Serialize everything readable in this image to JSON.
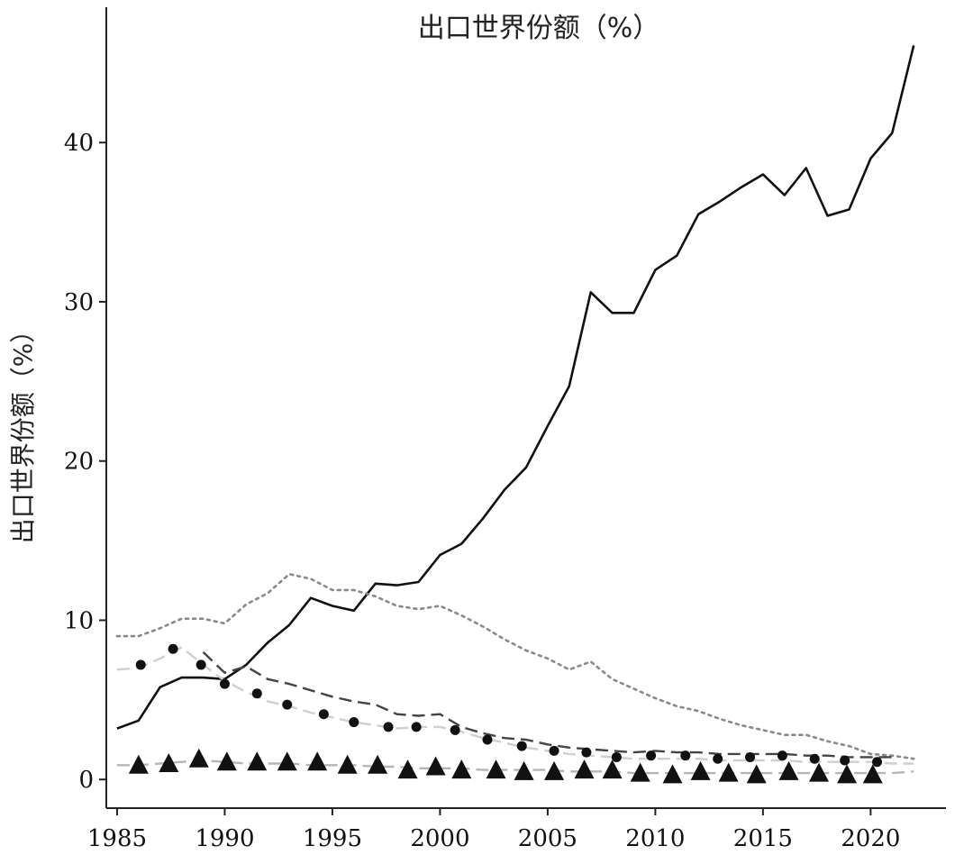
{
  "chart_data": {
    "type": "line",
    "title": "出口世界份额（%）",
    "xlabel": "",
    "ylabel": "出口世界份额（%）",
    "xlim": [
      1984.5,
      2023.5
    ],
    "ylim": [
      -1.8,
      48.5
    ],
    "xticks": [
      1985,
      1990,
      1995,
      2000,
      2005,
      2010,
      2015,
      2020
    ],
    "yticks": [
      0,
      10,
      20,
      30,
      40
    ],
    "grid": false,
    "legend": "none",
    "series": [
      {
        "style": "solid",
        "color": "#111111",
        "x": [
          1985,
          1986,
          1987,
          1988,
          1989,
          1990,
          1991,
          1992,
          1993,
          1994,
          1995,
          1996,
          1997,
          1998,
          1999,
          2000,
          2001,
          2002,
          2003,
          2004,
          2005,
          2006,
          2007,
          2008,
          2009,
          2010,
          2011,
          2012,
          2013,
          2014,
          2015,
          2016,
          2017,
          2018,
          2019,
          2020,
          2021,
          2022
        ],
        "values": [
          3.2,
          3.7,
          5.8,
          6.4,
          6.4,
          6.3,
          7.2,
          8.6,
          9.7,
          11.4,
          10.9,
          10.6,
          12.3,
          12.2,
          12.4,
          14.1,
          14.8,
          16.4,
          18.2,
          19.6,
          22.2,
          24.7,
          30.6,
          29.3,
          29.3,
          32.0,
          32.9,
          35.5,
          36.3,
          37.2,
          38.0,
          36.7,
          38.4,
          35.4,
          35.8,
          39.0,
          40.6,
          46.1
        ]
      },
      {
        "style": "dotted",
        "color": "#8a8a8a",
        "x": [
          1985,
          1986,
          1987,
          1988,
          1989,
          1990,
          1991,
          1992,
          1993,
          1994,
          1995,
          1996,
          1997,
          1998,
          1999,
          2000,
          2001,
          2002,
          2003,
          2004,
          2005,
          2006,
          2007,
          2008,
          2009,
          2010,
          2011,
          2012,
          2013,
          2014,
          2015,
          2016,
          2017,
          2018,
          2019,
          2020,
          2021,
          2022
        ],
        "values": [
          9.0,
          9.0,
          9.5,
          10.1,
          10.1,
          9.8,
          11.0,
          11.7,
          12.9,
          12.6,
          11.9,
          11.9,
          11.5,
          10.9,
          10.7,
          10.9,
          10.3,
          9.6,
          8.8,
          8.1,
          7.6,
          6.9,
          7.4,
          6.3,
          5.7,
          5.1,
          4.6,
          4.3,
          3.8,
          3.4,
          3.1,
          2.8,
          2.8,
          2.4,
          2.1,
          1.6,
          1.5,
          1.3
        ]
      },
      {
        "style": "dashed",
        "color": "#444444",
        "x": [
          1989,
          1990,
          1991,
          1992,
          1993,
          1994,
          1995,
          1996,
          1997,
          1998,
          1999,
          2000,
          2001,
          2002,
          2003,
          2004,
          2005,
          2006,
          2007,
          2008,
          2009,
          2010,
          2011,
          2012,
          2013,
          2014,
          2015,
          2016,
          2017,
          2018,
          2019,
          2020,
          2021
        ],
        "values": [
          8.0,
          6.7,
          7.1,
          6.3,
          6.0,
          5.6,
          5.2,
          4.9,
          4.7,
          4.1,
          4.0,
          4.1,
          3.3,
          2.9,
          2.6,
          2.5,
          2.2,
          2.0,
          1.9,
          1.8,
          1.7,
          1.8,
          1.7,
          1.7,
          1.6,
          1.6,
          1.6,
          1.6,
          1.5,
          1.5,
          1.4,
          1.4,
          1.4
        ]
      },
      {
        "style": "dashed",
        "color": "#cfcfcf",
        "x": [
          1985,
          1986,
          1987,
          1988,
          1989,
          1990,
          1991,
          1992,
          1993,
          1994,
          1995,
          1996,
          1997,
          1998,
          1999,
          2000,
          2001,
          2002,
          2003,
          2004,
          2005,
          2006,
          2007,
          2008,
          2009,
          2010,
          2011,
          2012,
          2013,
          2014,
          2015,
          2016,
          2017,
          2018,
          2019,
          2020,
          2021,
          2022
        ],
        "values": [
          6.9,
          7.0,
          7.6,
          8.3,
          7.2,
          6.2,
          5.5,
          4.9,
          4.6,
          4.2,
          3.9,
          3.6,
          3.4,
          3.2,
          3.3,
          3.3,
          3.0,
          2.6,
          2.3,
          2.0,
          1.8,
          1.6,
          1.5,
          1.4,
          1.3,
          1.3,
          1.3,
          1.3,
          1.2,
          1.2,
          1.2,
          1.2,
          1.1,
          1.1,
          1.1,
          1.1,
          1.0,
          1.0
        ]
      },
      {
        "style": "markers",
        "marker": "circle",
        "color": "#111111",
        "x": [
          1986.1,
          1987.6,
          1988.9,
          1990.0,
          1991.5,
          1992.9,
          1994.6,
          1996.0,
          1997.6,
          1998.9,
          2000.7,
          2002.2,
          2003.8,
          2005.3,
          2006.8,
          2008.2,
          2009.8,
          2011.4,
          2012.9,
          2014.4,
          2015.9,
          2017.4,
          2018.8,
          2020.3
        ],
        "values": [
          7.2,
          8.2,
          7.2,
          6.0,
          5.4,
          4.7,
          4.1,
          3.6,
          3.3,
          3.3,
          3.1,
          2.5,
          2.1,
          1.8,
          1.7,
          1.4,
          1.5,
          1.5,
          1.3,
          1.4,
          1.5,
          1.3,
          1.2,
          1.1
        ]
      },
      {
        "style": "dashed",
        "color": "#b5b5b5",
        "x": [
          1985,
          1986,
          1987,
          1988,
          1989,
          1990,
          1991,
          1992,
          1993,
          1994,
          1995,
          1996,
          1997,
          1998,
          1999,
          2000,
          2001,
          2002,
          2003,
          2004,
          2005,
          2006,
          2007,
          2008,
          2009,
          2010,
          2011,
          2012,
          2013,
          2014,
          2015,
          2016,
          2017,
          2018,
          2019,
          2020,
          2021,
          2022
        ],
        "values": [
          0.9,
          0.9,
          1.0,
          1.1,
          1.2,
          1.1,
          1.0,
          1.0,
          1.0,
          0.9,
          0.9,
          0.9,
          0.8,
          0.8,
          0.7,
          0.7,
          0.7,
          0.6,
          0.6,
          0.6,
          0.6,
          0.5,
          0.5,
          0.5,
          0.4,
          0.4,
          0.4,
          0.4,
          0.4,
          0.4,
          0.4,
          0.4,
          0.4,
          0.4,
          0.4,
          0.4,
          0.4,
          0.5
        ]
      },
      {
        "style": "markers",
        "marker": "triangle",
        "color": "#111111",
        "x": [
          1986.0,
          1987.4,
          1988.8,
          1990.1,
          1991.5,
          1992.9,
          1994.3,
          1995.7,
          1997.1,
          1998.5,
          1999.8,
          2001.0,
          2002.6,
          2003.9,
          2005.3,
          2006.7,
          2008.0,
          2009.3,
          2010.8,
          2012.1,
          2013.4,
          2014.7,
          2016.2,
          2017.6,
          2018.9,
          2020.1
        ],
        "values": [
          0.9,
          1.0,
          1.3,
          1.1,
          1.1,
          1.1,
          1.1,
          0.9,
          0.9,
          0.6,
          0.8,
          0.6,
          0.6,
          0.5,
          0.5,
          0.6,
          0.6,
          0.4,
          0.3,
          0.5,
          0.4,
          0.3,
          0.5,
          0.4,
          0.3,
          0.3
        ]
      }
    ]
  }
}
